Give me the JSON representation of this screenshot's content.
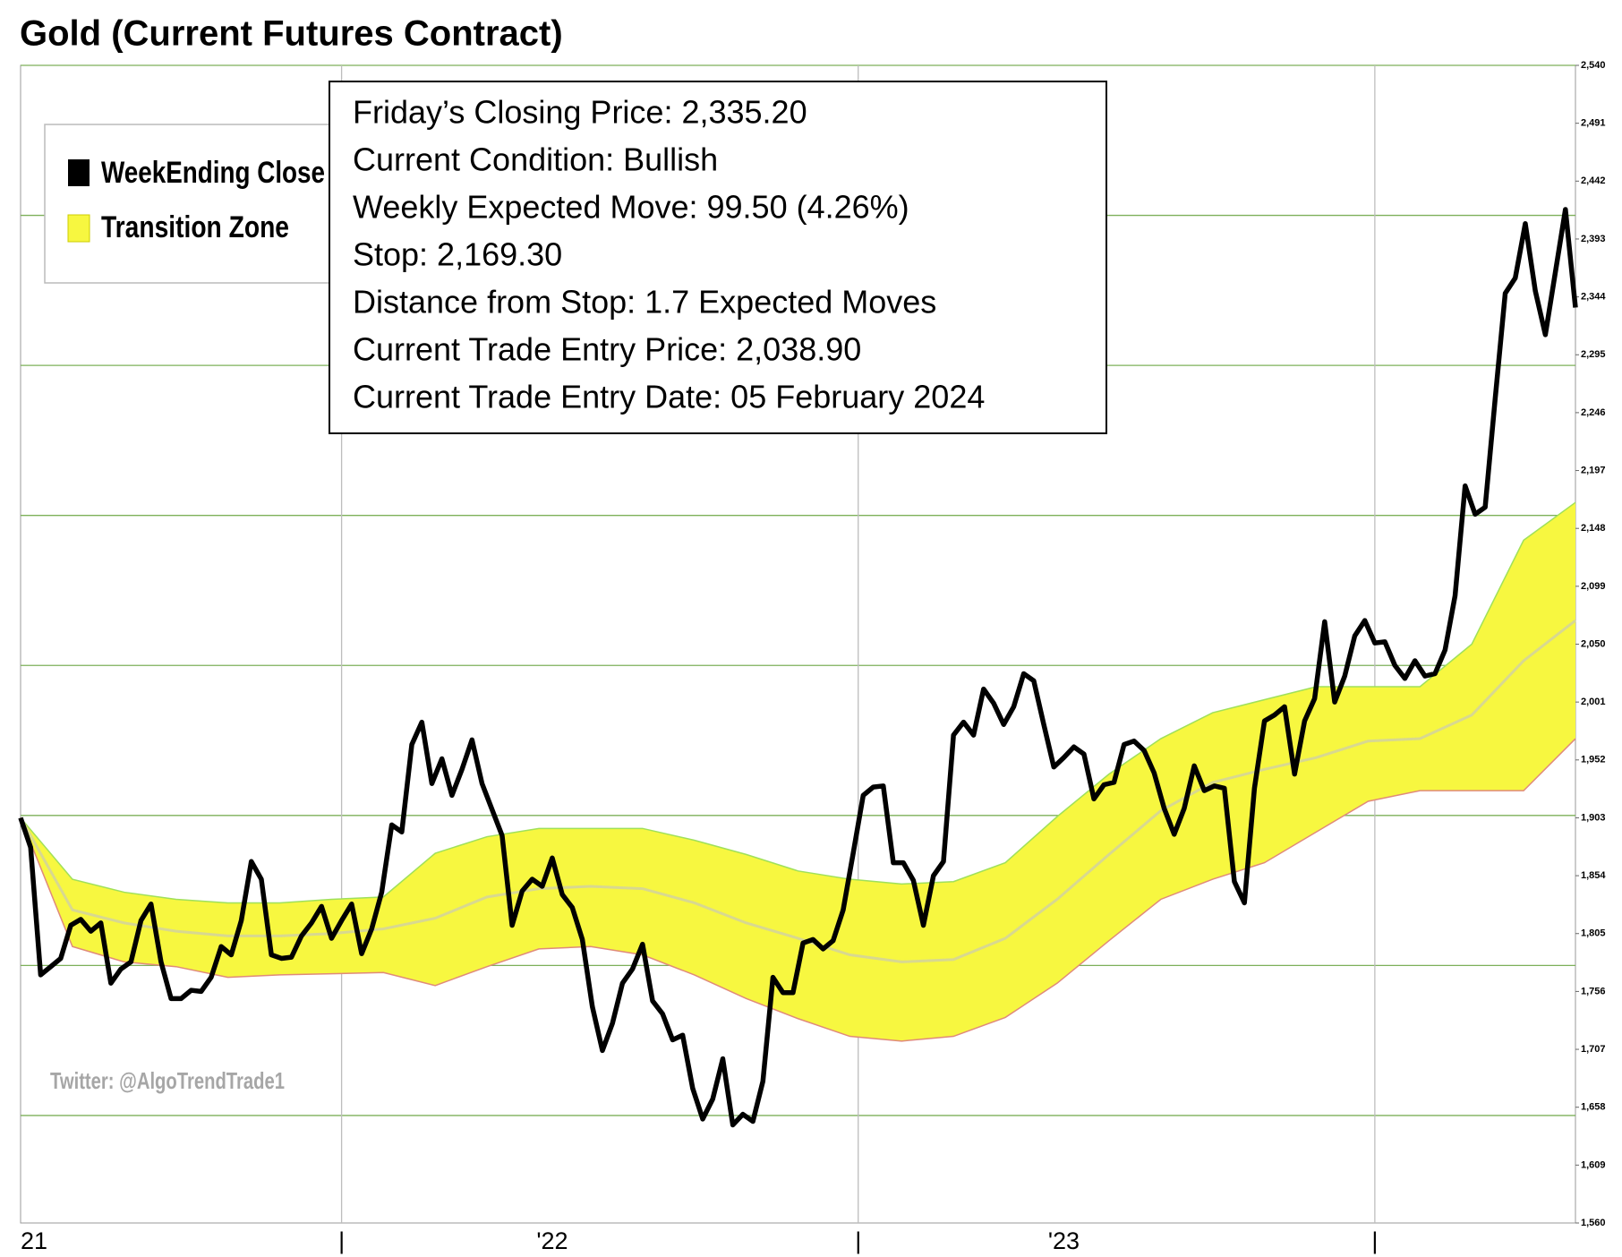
{
  "chart_data": {
    "type": "line",
    "title": "Gold (Current Futures Contract)",
    "info_box": [
      "Friday’s Closing Price: 2,335.20",
      "Current Condition: Bullish",
      "Weekly Expected Move: 99.50 (4.26%)",
      "Stop: 2,169.30",
      "Distance from Stop: 1.7 Expected Moves",
      "Current Trade Entry Price: 2,038.90",
      "Current Trade Entry Date: 05 February 2024"
    ],
    "annotation": "Twitter: @AlgoTrendTrade1",
    "xlim": [
      0,
      155
    ],
    "xticks": [
      {
        "value": 0,
        "label": "21"
      },
      {
        "value": 32,
        "label": "|"
      },
      {
        "value": 53,
        "label": "'22"
      },
      {
        "value": 83.5,
        "label": "|"
      },
      {
        "value": 104,
        "label": "'23"
      },
      {
        "value": 135,
        "label": "|"
      }
    ],
    "xgrid": [
      32,
      83.5,
      135
    ],
    "ylim": [
      1560,
      2540
    ],
    "yticks": [
      {
        "value": 1560,
        "label": "1,560"
      },
      {
        "value": 1609,
        "label": "1,609"
      },
      {
        "value": 1658,
        "label": "1,658"
      },
      {
        "value": 1707,
        "label": "1,707"
      },
      {
        "value": 1756,
        "label": "1,756"
      },
      {
        "value": 1805,
        "label": "1,805"
      },
      {
        "value": 1854,
        "label": "1,854"
      },
      {
        "value": 1903,
        "label": "1,903"
      },
      {
        "value": 1952,
        "label": "1,952"
      },
      {
        "value": 2001,
        "label": "2,001"
      },
      {
        "value": 2050,
        "label": "2,050"
      },
      {
        "value": 2099,
        "label": "2,099"
      },
      {
        "value": 2148,
        "label": "2,148"
      },
      {
        "value": 2197,
        "label": "2,197"
      },
      {
        "value": 2246,
        "label": "2,246"
      },
      {
        "value": 2295,
        "label": "2,295"
      },
      {
        "value": 2344,
        "label": "2,344"
      },
      {
        "value": 2393,
        "label": "2,393"
      },
      {
        "value": 2442,
        "label": "2,442"
      },
      {
        "value": 2491,
        "label": "2,491"
      },
      {
        "value": 2540,
        "label": "2,540"
      }
    ],
    "ygrid": [
      1651,
      1778,
      1905,
      2032,
      2159,
      2286,
      2413,
      2540
    ],
    "series": [
      {
        "name": "WeekEnding Close",
        "color": "#000000",
        "values": [
          1903,
          1878,
          1770,
          1777,
          1784,
          1812,
          1817,
          1807,
          1814,
          1763,
          1775,
          1781,
          1816,
          1830,
          1781,
          1750,
          1750,
          1757,
          1756,
          1768,
          1794,
          1787,
          1816,
          1866,
          1851,
          1787,
          1784,
          1785,
          1803,
          1814,
          1828,
          1801,
          1816,
          1830,
          1788,
          1809,
          1840,
          1897,
          1891,
          1965,
          1984,
          1932,
          1953,
          1922,
          1944,
          1969,
          1932,
          1910,
          1888,
          1812,
          1841,
          1851,
          1845,
          1869,
          1838,
          1827,
          1800,
          1743,
          1706,
          1729,
          1763,
          1775,
          1796,
          1748,
          1737,
          1715,
          1719,
          1674,
          1648,
          1665,
          1699,
          1643,
          1652,
          1646,
          1680,
          1768,
          1755,
          1755,
          1797,
          1800,
          1792,
          1799,
          1825,
          1873,
          1922,
          1929,
          1930,
          1865,
          1865,
          1850,
          1812,
          1854,
          1866,
          1973,
          1984,
          1973,
          2012,
          2000,
          1982,
          1997,
          2025,
          2019,
          1982,
          1946,
          1954,
          1963,
          1957,
          1919,
          1931,
          1933,
          1965,
          1968,
          1960,
          1941,
          1911,
          1889,
          1911,
          1947,
          1926,
          1930,
          1928,
          1849,
          1831,
          1928,
          1985,
          1990,
          1997,
          1940,
          1985,
          2004,
          2069,
          2001,
          2023,
          2057,
          2070,
          2051,
          2052,
          2032,
          2021,
          2036,
          2023,
          2025,
          2045,
          2091,
          2184,
          2160,
          2166,
          2258,
          2347,
          2360,
          2406,
          2349,
          2312,
          2365,
          2418,
          2335
        ]
      }
    ],
    "band": {
      "name": "Transition Zone",
      "color": "#f7f740",
      "upper": [
        1903,
        1851,
        1840,
        1834,
        1831,
        1831,
        1834,
        1836,
        1873,
        1887,
        1894,
        1894,
        1894,
        1884,
        1872,
        1858,
        1851,
        1847,
        1849,
        1865,
        1904,
        1940,
        1970,
        1992,
        2003,
        2014,
        2014,
        2014,
        2050,
        2138,
        2170
      ],
      "mid": [
        1903,
        1825,
        1814,
        1807,
        1803,
        1803,
        1805,
        1809,
        1818,
        1836,
        1843,
        1845,
        1843,
        1831,
        1814,
        1801,
        1787,
        1781,
        1783,
        1801,
        1834,
        1872,
        1909,
        1933,
        1944,
        1954,
        1968,
        1970,
        1990,
        2036,
        2070
      ],
      "lower": [
        1903,
        1794,
        1781,
        1777,
        1768,
        1770,
        1771,
        1772,
        1761,
        1777,
        1792,
        1794,
        1787,
        1770,
        1750,
        1733,
        1718,
        1714,
        1718,
        1734,
        1763,
        1799,
        1834,
        1851,
        1865,
        1891,
        1917,
        1926,
        1926,
        1926,
        1970
      ]
    }
  }
}
